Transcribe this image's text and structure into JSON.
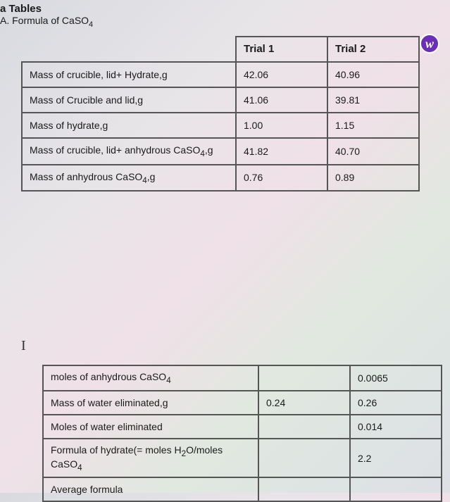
{
  "header": {
    "line1": "a Tables",
    "line2_prefix": "A.  Formula of CaSO",
    "line2_sub": "4"
  },
  "badge": "w",
  "cursor": "I",
  "table1": {
    "headers": {
      "blank": "",
      "t1": "Trial 1",
      "t2": "Trial 2"
    },
    "rows": [
      {
        "label": "Mass of crucible, lid+ Hydrate,g",
        "t1": "42.06",
        "t2": "40.96"
      },
      {
        "label": "Mass of Crucible and lid,g",
        "t1": "41.06",
        "t2": "39.81"
      },
      {
        "label": "Mass of hydrate,g",
        "t1": "1.00",
        "t2": "1.15"
      },
      {
        "label_html": "Mass of crucible, lid+ anhydrous CaSO<sub>4</sub>,g",
        "t1": "41.82",
        "t2": "40.70"
      },
      {
        "label_html": "Mass of anhydrous CaSO<sub>4</sub>,g",
        "t1": "0.76",
        "t2": "0.89"
      }
    ]
  },
  "table2": {
    "rows": [
      {
        "label_html": "moles of anhydrous CaSO<sub>4</sub>",
        "t1": "",
        "t2": "0.0065"
      },
      {
        "label": "Mass of water eliminated,g",
        "t1": "0.24",
        "t2": "0.26"
      },
      {
        "label": "Moles of water eliminated",
        "t1": "",
        "t2": "0.014"
      },
      {
        "label_html": "Formula of hydrate(= moles H<sub>2</sub>O/moles CaSO<sub>4</sub>",
        "t1": "",
        "t2": "2.2"
      },
      {
        "label": "Average formula",
        "t1": "",
        "t2": ""
      }
    ]
  }
}
